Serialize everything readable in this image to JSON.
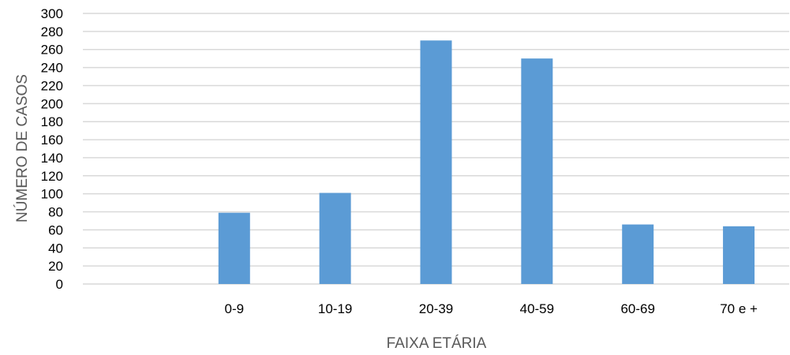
{
  "chart_data": {
    "type": "bar",
    "categories": [
      "",
      "0-9",
      "10-19",
      "20-39",
      "40-59",
      "60-69",
      "70 e +"
    ],
    "values": [
      null,
      79,
      101,
      270,
      250,
      66,
      64
    ],
    "title": "",
    "xlabel": "FAIXA ETÁRIA",
    "ylabel": "NÚMERO DE CASOS",
    "ylim": [
      0,
      300
    ],
    "yticks": [
      0,
      20,
      40,
      60,
      80,
      100,
      120,
      140,
      160,
      180,
      200,
      220,
      240,
      260,
      280,
      300
    ],
    "grid": true,
    "legend": "none",
    "colors": {
      "bar": "#5B9BD5",
      "grid": "#D9D9D9",
      "axis_title": "#595959",
      "tick_text": "#000000"
    }
  }
}
